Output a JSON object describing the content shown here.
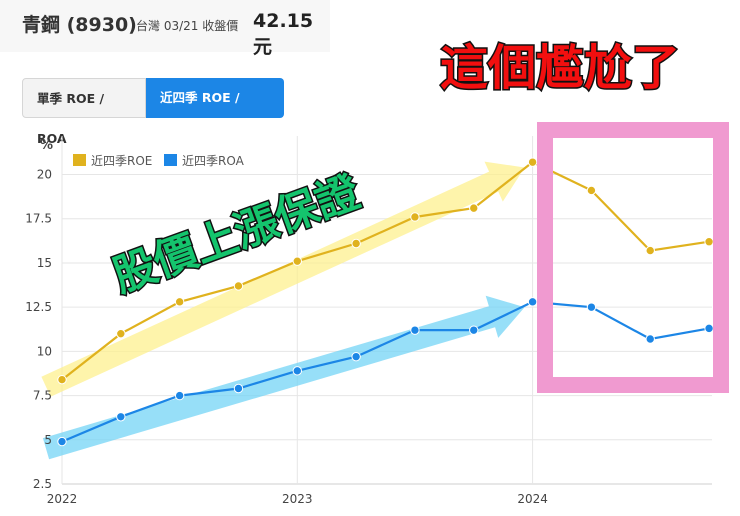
{
  "header": {
    "stock_name": "青鋼 (8930)",
    "market": "台灣",
    "date": "03/21",
    "price_label": "收盤價",
    "price": "42.15 元"
  },
  "tabs": [
    {
      "label": "單季 ROE / ROA",
      "active": false
    },
    {
      "label": "近四季 ROE / ROA",
      "active": true
    }
  ],
  "annotations": {
    "top_right": "這個尷尬了",
    "middle": "股價上漲保證"
  },
  "colors": {
    "roe": "#e0b21e",
    "roa": "#1c86e6",
    "roe_highlight": "#fdf08a",
    "roa_highlight": "#6fd3f5",
    "box": "#f09ad0",
    "red_text": "#f20f0f",
    "green_text": "#14c46d"
  },
  "chart_data": {
    "type": "line",
    "ylabel": "%",
    "ylim": [
      2.5,
      21.5
    ],
    "yticks": [
      2.5,
      5,
      7.5,
      10,
      12.5,
      15,
      17.5,
      20
    ],
    "xticks": [
      {
        "label": "2022",
        "x": 0
      },
      {
        "label": "2023",
        "x": 4
      },
      {
        "label": "2024",
        "x": 8
      }
    ],
    "x": [
      0,
      1,
      2,
      3,
      4,
      5,
      6,
      7,
      8,
      9,
      10,
      11
    ],
    "series": [
      {
        "name": "近四季ROE",
        "values": [
          8.4,
          11.0,
          12.8,
          13.7,
          15.1,
          16.1,
          17.6,
          18.1,
          20.7,
          19.1,
          15.7,
          16.2
        ]
      },
      {
        "name": "近四季ROA",
        "values": [
          4.9,
          6.3,
          7.5,
          7.9,
          8.9,
          9.7,
          11.2,
          11.2,
          12.8,
          12.5,
          10.7,
          11.3
        ]
      }
    ],
    "grid": true,
    "legend": "top-left"
  }
}
